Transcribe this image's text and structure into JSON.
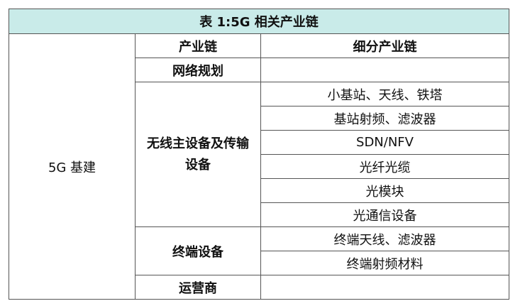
{
  "title": "表 1:5G 相关产业链",
  "category": "5G 基建",
  "headers": {
    "chain": "产业链",
    "sub_chain": "细分产业链"
  },
  "groups": [
    {
      "name": "网络规划",
      "items": [
        ""
      ]
    },
    {
      "name": "无线主设备及传输设备",
      "items": [
        "小基站、天线、铁塔",
        "基站射频、滤波器",
        "SDN/NFV",
        "光纤光缆",
        "光模块",
        "光通信设备"
      ]
    },
    {
      "name": "终端设备",
      "items": [
        "终端天线、滤波器",
        "终端射频材料"
      ]
    },
    {
      "name": "运营商",
      "items": [
        ""
      ]
    }
  ],
  "colors": {
    "title_bg": "#c9ebe9",
    "border": "#555555"
  }
}
